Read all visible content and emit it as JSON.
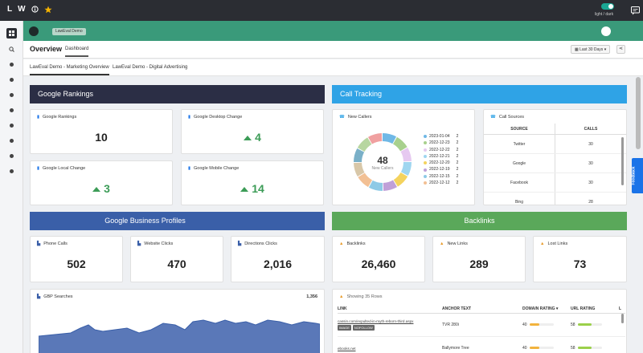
{
  "topbar": {
    "logo_l": "L",
    "logo_w": "W",
    "theme_label": "light / dark"
  },
  "header": {
    "workspace_chip": "LawEval Demo"
  },
  "overview": {
    "title": "Overview",
    "tab": "Dashboard",
    "date_range": "Last 30 Days ▾"
  },
  "subtabs": [
    "LawEval Demo - Marketing Overview",
    "LawEval Demo - Digital Advertising"
  ],
  "sections": {
    "google_rankings": "Google Rankings",
    "call_tracking": "Call Tracking",
    "gbp": "Google Business Profiles",
    "backlinks": "Backlinks"
  },
  "rankings": [
    {
      "label": "Google Rankings",
      "value": "10",
      "trend": ""
    },
    {
      "label": "Google Desktop Change",
      "value": "4",
      "trend": "up"
    },
    {
      "label": "Google Local Change",
      "value": "3",
      "trend": "up"
    },
    {
      "label": "Google Mobile Change",
      "value": "14",
      "trend": "up"
    }
  ],
  "new_callers": {
    "title": "New Callers",
    "total": "48",
    "subtitle": "New Callers",
    "legend": [
      {
        "date": "2023-01-04",
        "count": "2",
        "color": "#6fb8e6"
      },
      {
        "date": "2022-12-23",
        "count": "2",
        "color": "#a8d08d"
      },
      {
        "date": "2022-12-22",
        "count": "2",
        "color": "#e6c9f0"
      },
      {
        "date": "2022-12-21",
        "count": "2",
        "color": "#9fd6f0"
      },
      {
        "date": "2022-12-20",
        "count": "2",
        "color": "#f4d35e"
      },
      {
        "date": "2022-12-19",
        "count": "2",
        "color": "#c0a0d8"
      },
      {
        "date": "2022-12-15",
        "count": "2",
        "color": "#8ecae6"
      },
      {
        "date": "2022-12-12",
        "count": "2",
        "color": "#f2c094"
      }
    ]
  },
  "call_sources": {
    "title": "Call Sources",
    "col_source": "SOURCE",
    "col_calls": "CALLS",
    "rows": [
      {
        "source": "Twitter",
        "calls": "30"
      },
      {
        "source": "Google",
        "calls": "30"
      },
      {
        "source": "Facebook",
        "calls": "30"
      },
      {
        "source": "Bing",
        "calls": "28"
      }
    ]
  },
  "gbp_cards": [
    {
      "label": "Phone Calls",
      "value": "502"
    },
    {
      "label": "Website Clicks",
      "value": "470"
    },
    {
      "label": "Directions Clicks",
      "value": "2,016"
    }
  ],
  "backlink_cards": [
    {
      "label": "Backlinks",
      "value": "26,460"
    },
    {
      "label": "New Links",
      "value": "289"
    },
    {
      "label": "Lost Links",
      "value": "73"
    }
  ],
  "gbp_searches": {
    "title": "GBP Searches",
    "total": "1,356"
  },
  "links_table": {
    "title": "Showing 35 Rows",
    "col_link": "LINK",
    "col_anchor": "ANCHOR TEXT",
    "col_domain": "DOMAIN RATING ▾",
    "col_url": "URL RATING",
    "col_l": "L",
    "rows": [
      {
        "link": "cassin.com/expulted-in-myth-reborn-third.aspx",
        "badges": [
          "IMAGE",
          "NOFOLLOW"
        ],
        "anchor": "TVR 280i",
        "domain": "40",
        "url": "58"
      },
      {
        "link": "ebooks.net",
        "badges": [],
        "anchor": "Ballymore Tree",
        "domain": "40",
        "url": "58"
      }
    ]
  },
  "feedback": "Feedback",
  "colors": {
    "rankings_header": "#2b2e45",
    "call_header": "#2fa3e6",
    "gbp_header": "#3a5fa8",
    "backlinks_header": "#5aa85a",
    "teal": "#3a9a7a",
    "green": "#3c9c57"
  }
}
